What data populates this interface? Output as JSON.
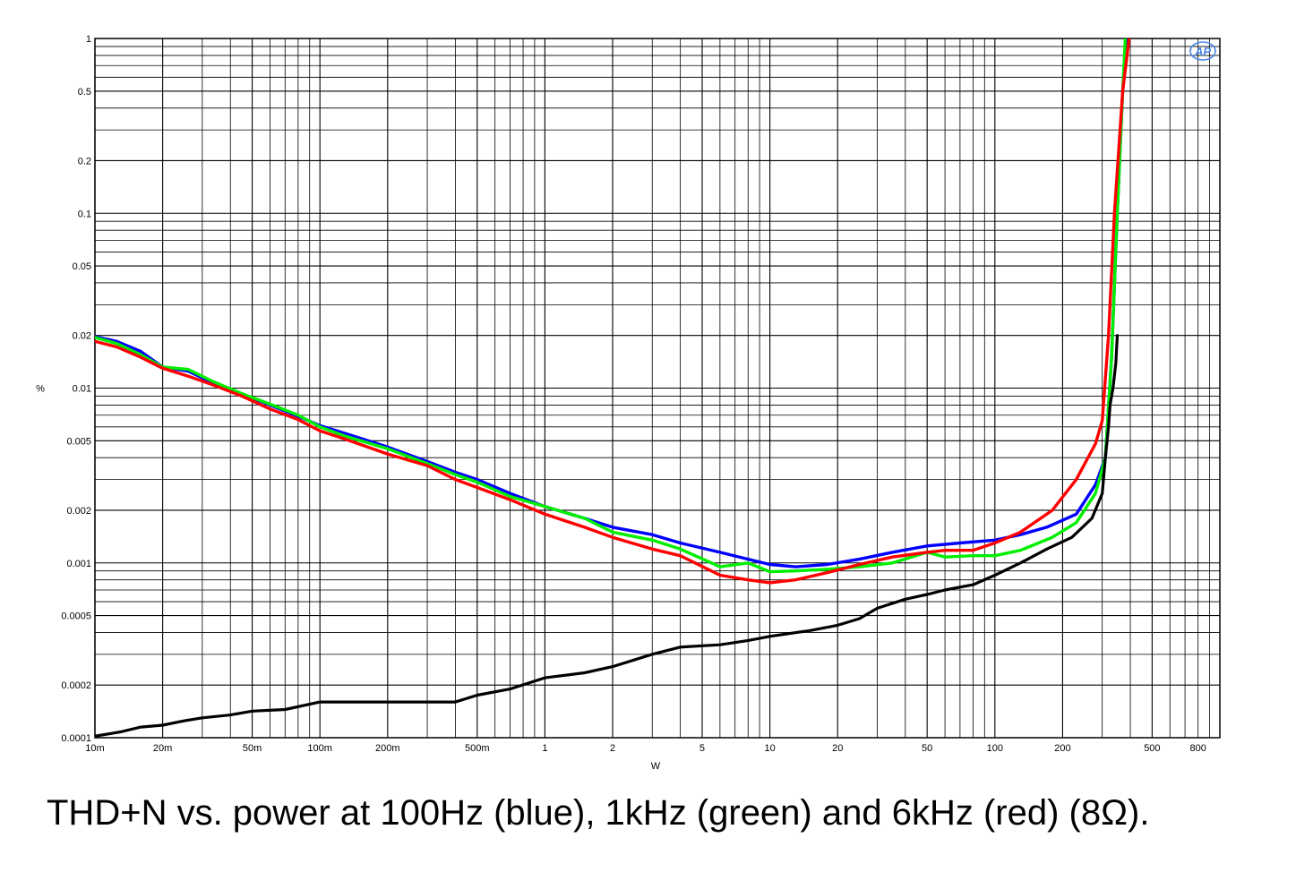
{
  "caption": "THD+N vs. power at 100Hz (blue), 1kHz (green) and 6kHz (red) (8Ω).",
  "logo_text": "AP",
  "chart_data": {
    "type": "line",
    "title": "",
    "xlabel": "W",
    "ylabel": "%",
    "xscale": "log",
    "yscale": "log",
    "xlim": [
      0.01,
      1000
    ],
    "ylim": [
      0.0001,
      1
    ],
    "grid": true,
    "x_ticks": [
      {
        "v": 0.01,
        "label": "10m"
      },
      {
        "v": 0.02,
        "label": "20m"
      },
      {
        "v": 0.05,
        "label": "50m"
      },
      {
        "v": 0.1,
        "label": "100m"
      },
      {
        "v": 0.2,
        "label": "200m"
      },
      {
        "v": 0.5,
        "label": "500m"
      },
      {
        "v": 1,
        "label": "1"
      },
      {
        "v": 2,
        "label": "2"
      },
      {
        "v": 5,
        "label": "5"
      },
      {
        "v": 10,
        "label": "10"
      },
      {
        "v": 20,
        "label": "20"
      },
      {
        "v": 50,
        "label": "50"
      },
      {
        "v": 100,
        "label": "100"
      },
      {
        "v": 200,
        "label": "200"
      },
      {
        "v": 500,
        "label": "500"
      },
      {
        "v": 800,
        "label": "800"
      }
    ],
    "y_ticks": [
      {
        "v": 1,
        "label": "1"
      },
      {
        "v": 0.5,
        "label": "0.5"
      },
      {
        "v": 0.2,
        "label": "0.2"
      },
      {
        "v": 0.1,
        "label": "0.1"
      },
      {
        "v": 0.05,
        "label": "0.05"
      },
      {
        "v": 0.02,
        "label": "0.02"
      },
      {
        "v": 0.01,
        "label": "0.01"
      },
      {
        "v": 0.005,
        "label": "0.005"
      },
      {
        "v": 0.002,
        "label": "0.002"
      },
      {
        "v": 0.001,
        "label": "0.001"
      },
      {
        "v": 0.0005,
        "label": "0.0005"
      },
      {
        "v": 0.0002,
        "label": "0.0002"
      },
      {
        "v": 0.0001,
        "label": "0.0001"
      }
    ],
    "series": [
      {
        "key": "blue",
        "color": "#0000ff",
        "points": [
          [
            0.01,
            0.0197
          ],
          [
            0.0125,
            0.0185
          ],
          [
            0.016,
            0.0162
          ],
          [
            0.02,
            0.0132
          ],
          [
            0.026,
            0.0125
          ],
          [
            0.033,
            0.0108
          ],
          [
            0.045,
            0.0093
          ],
          [
            0.06,
            0.008
          ],
          [
            0.08,
            0.0069
          ],
          [
            0.1,
            0.0061
          ],
          [
            0.13,
            0.0055
          ],
          [
            0.2,
            0.0046
          ],
          [
            0.3,
            0.0038
          ],
          [
            0.4,
            0.0033
          ],
          [
            0.5,
            0.003
          ],
          [
            0.7,
            0.0025
          ],
          [
            1.0,
            0.0021
          ],
          [
            1.5,
            0.0018
          ],
          [
            2.0,
            0.0016
          ],
          [
            3.0,
            0.00145
          ],
          [
            4.0,
            0.0013
          ],
          [
            6.0,
            0.00115
          ],
          [
            8.0,
            0.00105
          ],
          [
            10,
            0.00098
          ],
          [
            13,
            0.00095
          ],
          [
            18,
            0.00098
          ],
          [
            25,
            0.00105
          ],
          [
            35,
            0.00115
          ],
          [
            50,
            0.00125
          ],
          [
            70,
            0.0013
          ],
          [
            100,
            0.00135
          ],
          [
            130,
            0.00145
          ],
          [
            170,
            0.0016
          ],
          [
            230,
            0.0019
          ],
          [
            280,
            0.0028
          ],
          [
            310,
            0.004
          ],
          [
            330,
            0.015
          ],
          [
            350,
            0.1
          ],
          [
            370,
            0.5
          ],
          [
            385,
            1.0
          ]
        ]
      },
      {
        "key": "green",
        "color": "#00ee00",
        "points": [
          [
            0.01,
            0.0195
          ],
          [
            0.0125,
            0.018
          ],
          [
            0.016,
            0.0155
          ],
          [
            0.02,
            0.0132
          ],
          [
            0.026,
            0.0128
          ],
          [
            0.033,
            0.011
          ],
          [
            0.045,
            0.0093
          ],
          [
            0.06,
            0.0081
          ],
          [
            0.08,
            0.007
          ],
          [
            0.1,
            0.006
          ],
          [
            0.13,
            0.0053
          ],
          [
            0.2,
            0.0045
          ],
          [
            0.3,
            0.0037
          ],
          [
            0.4,
            0.0032
          ],
          [
            0.5,
            0.0029
          ],
          [
            0.7,
            0.0024
          ],
          [
            1.0,
            0.0021
          ],
          [
            1.5,
            0.0018
          ],
          [
            2.0,
            0.0015
          ],
          [
            3.0,
            0.00135
          ],
          [
            4.0,
            0.0012
          ],
          [
            6.0,
            0.00095
          ],
          [
            8.0,
            0.001
          ],
          [
            10,
            0.00089
          ],
          [
            13,
            0.0009
          ],
          [
            18,
            0.00092
          ],
          [
            25,
            0.00095
          ],
          [
            35,
            0.001
          ],
          [
            50,
            0.00115
          ],
          [
            60,
            0.00108
          ],
          [
            80,
            0.0011
          ],
          [
            100,
            0.0011
          ],
          [
            130,
            0.00118
          ],
          [
            180,
            0.0014
          ],
          [
            230,
            0.0017
          ],
          [
            280,
            0.0025
          ],
          [
            310,
            0.004
          ],
          [
            330,
            0.015
          ],
          [
            350,
            0.1
          ],
          [
            370,
            0.5
          ],
          [
            380,
            1.0
          ]
        ]
      },
      {
        "key": "red",
        "color": "#ff0000",
        "points": [
          [
            0.01,
            0.0185
          ],
          [
            0.0125,
            0.0172
          ],
          [
            0.016,
            0.015
          ],
          [
            0.02,
            0.013
          ],
          [
            0.026,
            0.0117
          ],
          [
            0.033,
            0.0105
          ],
          [
            0.045,
            0.009
          ],
          [
            0.06,
            0.0076
          ],
          [
            0.08,
            0.0066
          ],
          [
            0.1,
            0.0057
          ],
          [
            0.13,
            0.0051
          ],
          [
            0.2,
            0.0042
          ],
          [
            0.3,
            0.0036
          ],
          [
            0.4,
            0.003
          ],
          [
            0.5,
            0.0027
          ],
          [
            0.7,
            0.0023
          ],
          [
            1.0,
            0.0019
          ],
          [
            1.5,
            0.0016
          ],
          [
            2.0,
            0.0014
          ],
          [
            3.0,
            0.0012
          ],
          [
            4.0,
            0.0011
          ],
          [
            6.0,
            0.00085
          ],
          [
            8.0,
            0.0008
          ],
          [
            10,
            0.00077
          ],
          [
            13,
            0.0008
          ],
          [
            18,
            0.00088
          ],
          [
            25,
            0.00098
          ],
          [
            35,
            0.00108
          ],
          [
            50,
            0.00115
          ],
          [
            60,
            0.00118
          ],
          [
            80,
            0.00118
          ],
          [
            100,
            0.0013
          ],
          [
            130,
            0.0015
          ],
          [
            180,
            0.002
          ],
          [
            230,
            0.003
          ],
          [
            280,
            0.0048
          ],
          [
            300,
            0.0065
          ],
          [
            320,
            0.02
          ],
          [
            340,
            0.1
          ],
          [
            370,
            0.5
          ],
          [
            395,
            1.0
          ]
        ]
      },
      {
        "key": "black",
        "color": "#000000",
        "points": [
          [
            0.01,
            0.000102
          ],
          [
            0.013,
            0.000108
          ],
          [
            0.016,
            0.000115
          ],
          [
            0.02,
            0.000118
          ],
          [
            0.025,
            0.000125
          ],
          [
            0.03,
            0.00013
          ],
          [
            0.04,
            0.000135
          ],
          [
            0.05,
            0.000142
          ],
          [
            0.07,
            0.000145
          ],
          [
            0.1,
            0.00016
          ],
          [
            0.15,
            0.00016
          ],
          [
            0.2,
            0.00016
          ],
          [
            0.3,
            0.00016
          ],
          [
            0.4,
            0.00016
          ],
          [
            0.5,
            0.000175
          ],
          [
            0.7,
            0.00019
          ],
          [
            1.0,
            0.00022
          ],
          [
            1.5,
            0.000235
          ],
          [
            2.0,
            0.000255
          ],
          [
            3.0,
            0.0003
          ],
          [
            4.0,
            0.00033
          ],
          [
            6.0,
            0.00034
          ],
          [
            8.0,
            0.00036
          ],
          [
            10,
            0.00038
          ],
          [
            15,
            0.00041
          ],
          [
            20,
            0.00044
          ],
          [
            25,
            0.00048
          ],
          [
            30,
            0.00055
          ],
          [
            40,
            0.00062
          ],
          [
            50,
            0.00066
          ],
          [
            60,
            0.0007
          ],
          [
            80,
            0.00075
          ],
          [
            100,
            0.00085
          ],
          [
            130,
            0.001
          ],
          [
            170,
            0.0012
          ],
          [
            220,
            0.0014
          ],
          [
            270,
            0.0018
          ],
          [
            300,
            0.0025
          ],
          [
            310,
            0.004
          ],
          [
            320,
            0.006
          ],
          [
            325,
            0.008
          ],
          [
            335,
            0.01
          ],
          [
            345,
            0.014
          ],
          [
            350,
            0.02
          ]
        ]
      }
    ]
  }
}
